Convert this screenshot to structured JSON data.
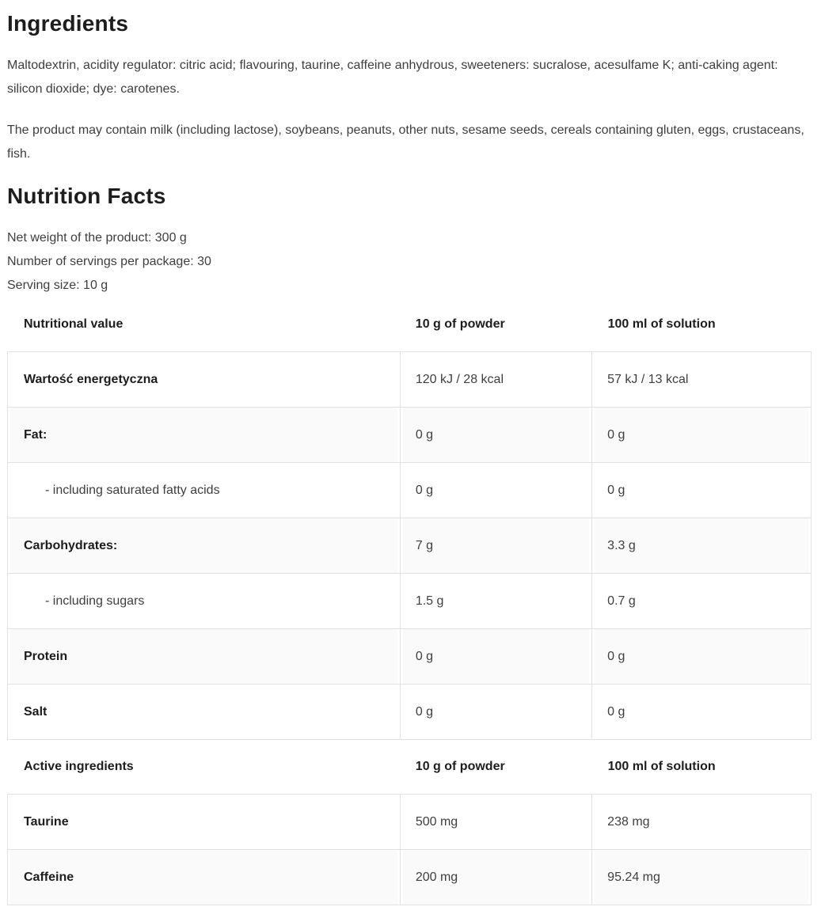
{
  "ingredients": {
    "title": "Ingredients",
    "paragraphs": [
      "Maltodextrin, acidity regulator: citric acid; flavouring, taurine, caffeine anhydrous, sweeteners: sucralose, acesulfame K; anti-caking agent: silicon dioxide; dye: carotenes.",
      "The product may contain milk (including lactose), soybeans, peanuts, other nuts, sesame seeds, cereals containing gluten, eggs, crustaceans, fish."
    ]
  },
  "nutrition": {
    "title": "Nutrition Facts",
    "meta": [
      "Net weight of the product: 300 g",
      "Number of servings per package: 30",
      "Serving size: 10 g"
    ],
    "nutrition_table": {
      "headers": [
        "Nutritional value",
        "10 g of powder",
        "100 ml of solution"
      ],
      "rows": [
        {
          "label": "Wartość energetyczna",
          "per_10g": "120 kJ / 28 kcal",
          "per_100ml": "57 kJ / 13 kcal",
          "bold": true,
          "indent": false
        },
        {
          "label": "Fat:",
          "per_10g": "0 g",
          "per_100ml": "0 g",
          "bold": true,
          "indent": false
        },
        {
          "label": "- including saturated fatty acids",
          "per_10g": "0 g",
          "per_100ml": "0 g",
          "bold": false,
          "indent": true
        },
        {
          "label": "Carbohydrates:",
          "per_10g": "7 g",
          "per_100ml": "3.3 g",
          "bold": true,
          "indent": false
        },
        {
          "label": "- including sugars",
          "per_10g": "1.5 g",
          "per_100ml": "0.7 g",
          "bold": false,
          "indent": true
        },
        {
          "label": "Protein",
          "per_10g": "0 g",
          "per_100ml": "0 g",
          "bold": true,
          "indent": false
        },
        {
          "label": "Salt",
          "per_10g": "0 g",
          "per_100ml": "0 g",
          "bold": true,
          "indent": false
        }
      ]
    },
    "active_table": {
      "headers": [
        "Active ingredients",
        "10 g of powder",
        "100 ml of solution"
      ],
      "rows": [
        {
          "label": "Taurine",
          "per_10g": "500 mg",
          "per_100ml": "238 mg",
          "bold": true,
          "indent": false
        },
        {
          "label": "Caffeine",
          "per_10g": "200 mg",
          "per_100ml": "95.24 mg",
          "bold": true,
          "indent": false
        }
      ]
    }
  },
  "colors": {
    "text_dark": "#1d1d1d",
    "text_body": "#3e3e3e",
    "table_border": "#e1e1e1",
    "row_alt_bg": "#fafafa",
    "page_bg": "#ffffff"
  }
}
